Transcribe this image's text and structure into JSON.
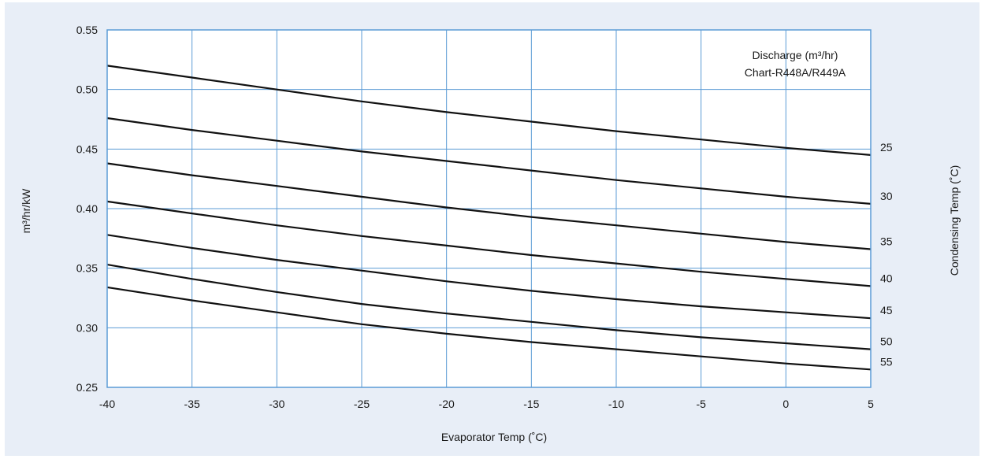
{
  "chart_data": {
    "type": "line",
    "title": "Discharge (m³/hr)",
    "subtitle": "Chart-R448A/R449A",
    "xlabel": "Evaporator Temp (˚C)",
    "ylabel": "m³/hr/kW",
    "y2label": "Condensing Temp (˚C)",
    "xlim": [
      -40,
      5
    ],
    "ylim": [
      0.25,
      0.55
    ],
    "x_ticks": [
      -40,
      -35,
      -30,
      -25,
      -20,
      -15,
      -10,
      -5,
      0,
      5
    ],
    "y_ticks": [
      "0.25",
      "0.30",
      "0.35",
      "0.40",
      "0.45",
      "0.50",
      "0.55"
    ],
    "grid": true,
    "legend": "none",
    "x": [
      -40,
      -35,
      -30,
      -25,
      -20,
      -15,
      -10,
      -5,
      0,
      5
    ],
    "series": [
      {
        "name": "25",
        "values": [
          0.52,
          0.51,
          0.5,
          0.49,
          0.481,
          0.473,
          0.465,
          0.458,
          0.451,
          0.445
        ]
      },
      {
        "name": "30",
        "values": [
          0.476,
          0.466,
          0.457,
          0.448,
          0.44,
          0.432,
          0.424,
          0.417,
          0.41,
          0.404
        ]
      },
      {
        "name": "35",
        "values": [
          0.438,
          0.428,
          0.419,
          0.41,
          0.401,
          0.393,
          0.386,
          0.379,
          0.372,
          0.366
        ]
      },
      {
        "name": "40",
        "values": [
          0.406,
          0.396,
          0.386,
          0.377,
          0.369,
          0.361,
          0.354,
          0.347,
          0.341,
          0.335
        ]
      },
      {
        "name": "45",
        "values": [
          0.378,
          0.367,
          0.357,
          0.348,
          0.339,
          0.331,
          0.324,
          0.318,
          0.313,
          0.308
        ]
      },
      {
        "name": "50",
        "values": [
          0.353,
          0.341,
          0.33,
          0.32,
          0.312,
          0.305,
          0.298,
          0.292,
          0.287,
          0.282
        ]
      },
      {
        "name": "55",
        "values": [
          0.334,
          0.323,
          0.313,
          0.303,
          0.295,
          0.288,
          0.282,
          0.276,
          0.27,
          0.265
        ]
      }
    ],
    "colors": {
      "line": "#111111",
      "grid": "#5b9bd5",
      "background": "#e8eef7",
      "plot": "#ffffff"
    }
  }
}
